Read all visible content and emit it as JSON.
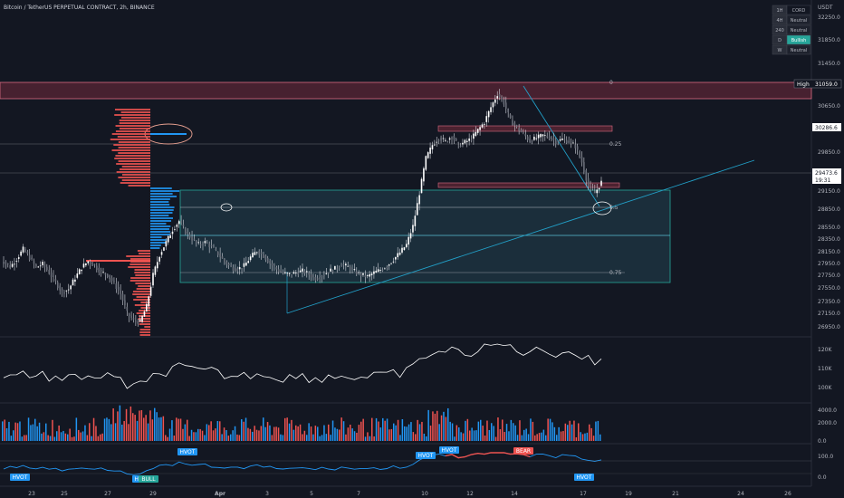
{
  "header": {
    "title": "Bitcoin / TetherUS PERPETUAL CONTRACT, 2h, BINANCE",
    "currency": "USDT"
  },
  "chart_data": [
    {
      "type": "candlestick",
      "title": "Bitcoin / TetherUS PERPETUAL CONTRACT, 2h, BINANCE",
      "y_ticks": [
        "32250.0",
        "31850.0",
        "31450.0",
        "30650.0",
        "29850.0",
        "29150.0",
        "28850.0",
        "28550.0",
        "28350.0",
        "28150.0",
        "27950.0",
        "27750.0",
        "27550.0",
        "27350.0",
        "27150.0",
        "26950.0"
      ],
      "ylim": [
        26800,
        32400
      ],
      "x_ticks": [
        "23",
        "25",
        "27",
        "29",
        "Apr",
        "3",
        "5",
        "7",
        "10",
        "12",
        "14",
        "17",
        "19",
        "21",
        "24",
        "26"
      ],
      "price_tags": [
        {
          "label": "High",
          "value": "31059.0",
          "color": "#131722",
          "text": "#ffffff"
        },
        {
          "label": "",
          "value": "30286.6",
          "color": "#ffffff",
          "text": "#131722"
        },
        {
          "label": "",
          "value": "29473.6",
          "color": "#ffffff",
          "text": "#131722"
        },
        {
          "label": "",
          "value": "19:31",
          "color": "#ffffff",
          "text": "#131722"
        }
      ],
      "fib_labels": [
        "0",
        "0.25",
        "0.5",
        "0.75"
      ],
      "close_series": [
        28080,
        27990,
        28130,
        28300,
        28150,
        27980,
        28040,
        27890,
        27720,
        27550,
        27600,
        27800,
        27980,
        28090,
        28010,
        27900,
        27850,
        27700,
        27520,
        27180,
        27050,
        27030,
        27300,
        27850,
        28200,
        28420,
        28640,
        28790,
        28600,
        28480,
        28380,
        28420,
        28340,
        28220,
        28080,
        27980,
        27950,
        28010,
        28160,
        28270,
        28190,
        28050,
        27950,
        27880,
        27860,
        27890,
        27920,
        27860,
        27790,
        27840,
        27910,
        27960,
        28030,
        27990,
        27910,
        27850,
        27820,
        27890,
        27940,
        28010,
        28120,
        28240,
        28380,
        28700,
        29280,
        29890,
        30120,
        30250,
        30180,
        30280,
        30110,
        30170,
        30230,
        30380,
        30520,
        30780,
        31010,
        30860,
        30550,
        30420,
        30310,
        30190,
        30240,
        30290,
        30260,
        30180,
        30220,
        30180,
        30100,
        29820,
        29400,
        29280,
        29470
      ]
    },
    {
      "type": "line",
      "name": "volume-oscillator",
      "y_ticks": [
        "120K",
        "110K",
        "100K"
      ]
    },
    {
      "type": "bar",
      "name": "volume",
      "y_ticks": [
        "4000.0",
        "2000.0",
        "0.0"
      ]
    },
    {
      "type": "line",
      "name": "oscillator",
      "y_ticks": [
        "100.0",
        "0.0"
      ],
      "annotations": [
        "HVOT",
        "HVOT",
        "BULL",
        "HVOT",
        "HVOT",
        "HVOT",
        "BEAR",
        "HVOT"
      ]
    }
  ],
  "trend_table": {
    "rows": [
      {
        "tf": "1H",
        "state": "CORD"
      },
      {
        "tf": "4H",
        "state": "Neutral"
      },
      {
        "tf": "240",
        "state": "Neutral"
      },
      {
        "tf": "D",
        "state": "Bullish"
      },
      {
        "tf": "W",
        "state": "Neutral"
      }
    ]
  },
  "colors": {
    "up": "#ffffff",
    "down": "#ffffff",
    "zone": "#2962ff",
    "bull": "#26a69a",
    "bear": "#ef5350",
    "trend": "#22a0c8"
  }
}
